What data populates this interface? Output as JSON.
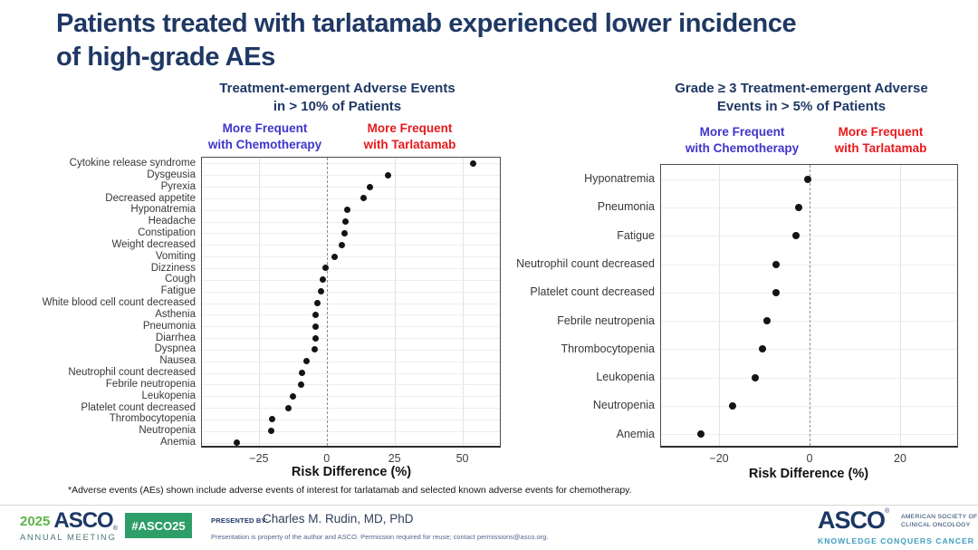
{
  "slide": {
    "title_lines": [
      "Patients treated with tarlatamab experienced lower incidence",
      "of high-grade AEs"
    ],
    "footnote": "*Adverse events (AEs) shown include adverse events of interest for tarlatamab and selected known adverse events for chemotherapy."
  },
  "colors": {
    "navy": "#1F3864",
    "navy_logo": "#1B3764",
    "chemo_blue": "#4035CB",
    "tarlatamab_red": "#E8191C",
    "dot_black": "#141414",
    "badge_green": "#2E9E68",
    "year_green": "#5CB348",
    "tagline_teal": "#3D9DBE"
  },
  "chart_data": [
    {
      "type": "scatter",
      "title_lines": [
        "Treatment-emergent Adverse Events",
        "in > 10% of Patients"
      ],
      "legend_left_lines": [
        "More Frequent",
        "with Chemotherapy"
      ],
      "legend_right_lines": [
        "More Frequent",
        "with Tarlatamab"
      ],
      "xlabel": "Risk Difference (%)",
      "xlim": [
        -46,
        64.5
      ],
      "xticks": [
        -25,
        0,
        25,
        50
      ],
      "zero_line": 0,
      "grid": true,
      "categories": [
        "Cytokine release syndrome",
        "Dysgeusia",
        "Pyrexia",
        "Decreased appetite",
        "Hyponatremia",
        "Headache",
        "Constipation",
        "Weight decreased",
        "Vomiting",
        "Dizziness",
        "Cough",
        "Fatigue",
        "White blood cell count decreased",
        "Asthenia",
        "Pneumonia",
        "Diarrhea",
        "Dyspnea",
        "Nausea",
        "Neutrophil count decreased",
        "Febrile neutropenia",
        "Leukopenia",
        "Platelet count decreased",
        "Thrombocytopenia",
        "Neutropenia",
        "Anemia"
      ],
      "values": [
        54,
        22.5,
        16,
        13.5,
        7.5,
        7,
        6.5,
        5.5,
        3,
        -0.5,
        -1.5,
        -2,
        -3.5,
        -4,
        -4,
        -4,
        -4.5,
        -7.5,
        -9,
        -9.5,
        -12.5,
        -14,
        -20,
        -20.5,
        -33
      ]
    },
    {
      "type": "scatter",
      "title_lines": [
        "Grade ≥ 3 Treatment-emergent Adverse",
        "Events in > 5% of Patients"
      ],
      "legend_left_lines": [
        "More Frequent",
        "with Chemotherapy"
      ],
      "legend_right_lines": [
        "More Frequent",
        "with Tarlatamab"
      ],
      "xlabel": "Risk Difference (%)",
      "xlim": [
        -32.8,
        33
      ],
      "xticks": [
        -20,
        0,
        20
      ],
      "zero_line": 0,
      "grid": true,
      "categories": [
        "Hyponatremia",
        "Pneumonia",
        "Fatigue",
        "Neutrophil count decreased",
        "Platelet count decreased",
        "Febrile neutropenia",
        "Thrombocytopenia",
        "Leukopenia",
        "Neutropenia",
        "Anemia"
      ],
      "values": [
        -0.5,
        -2.5,
        -3,
        -7.5,
        -7.5,
        -9.5,
        -10.5,
        -12,
        -17,
        -24
      ]
    }
  ],
  "footer": {
    "year": "2025",
    "asco": "ASCO",
    "reg": "®",
    "annual_meeting": "ANNUAL MEETING",
    "hashtag": "#ASCO25",
    "presented_by_label": "PRESENTED BY:",
    "presenter": "Charles M. Rudin, MD, PhD",
    "disclaimer": "Presentation is property of the author and ASCO. Permission required for reuse; contact permissions@asco.org.",
    "logo_asco": "ASCO",
    "logo_society_lines": [
      "AMERICAN SOCIETY OF",
      "CLINICAL ONCOLOGY"
    ],
    "logo_tagline": "KNOWLEDGE CONQUERS CANCER"
  }
}
